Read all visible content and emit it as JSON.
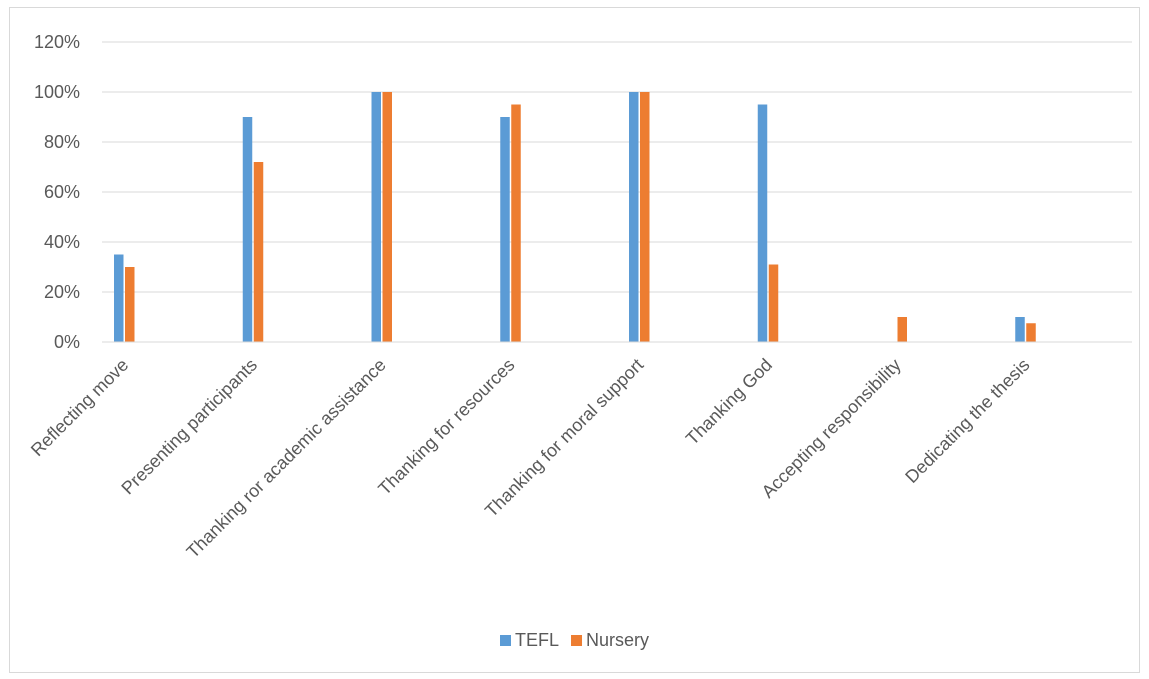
{
  "chart_data": {
    "type": "bar",
    "categories": [
      "Reflecting move",
      "Presenting participants",
      "Thanking ror academic assistance",
      "Thanking for resources",
      "Thanking for moral support",
      "Thanking God",
      "Accepting responsibility",
      "Dedicating the thesis"
    ],
    "series": [
      {
        "name": "TEFL",
        "color": "#5b9bd5",
        "values": [
          0.35,
          0.9,
          1.0,
          0.9,
          1.0,
          0.95,
          0.0,
          0.1
        ]
      },
      {
        "name": "Nursery",
        "color": "#ed7d31",
        "values": [
          0.3,
          0.72,
          1.0,
          0.95,
          1.0,
          0.31,
          0.1,
          0.075
        ]
      }
    ],
    "yticks": [
      "0%",
      "20%",
      "40%",
      "60%",
      "80%",
      "100%",
      "120%"
    ],
    "ylim": [
      0,
      1.2
    ],
    "grid": true,
    "legend_position": "bottom",
    "title": "",
    "xlabel": "",
    "ylabel": ""
  }
}
